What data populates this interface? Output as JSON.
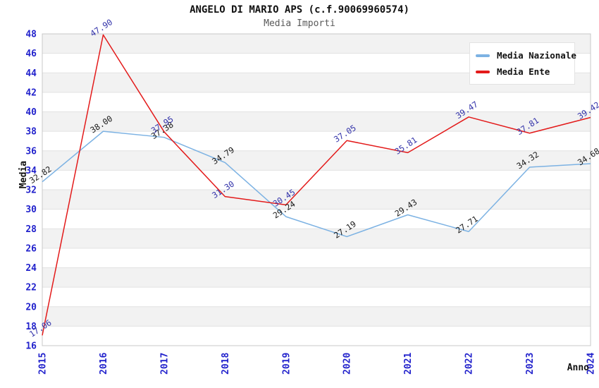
{
  "header": {
    "title": "ANGELO DI MARIO APS (c.f.90069960574)",
    "subtitle": "Media Importi"
  },
  "axes": {
    "y_label": "Media",
    "x_label": "Anno"
  },
  "legend": {
    "items": [
      {
        "label": "Media Nazionale",
        "color": "#7cb2e3"
      },
      {
        "label": "Media Ente",
        "color": "#e31a1a"
      }
    ]
  },
  "colors": {
    "tick_label": "#2222cc",
    "band_fill": "#f2f2f2",
    "grid_line": "#e2e2e2",
    "plot_border": "#c8c8c8",
    "nazionale_line": "#7cb2e3",
    "ente_line": "#e31a1a",
    "nazionale_point_label": "#1a1a1a",
    "ente_point_label": "#3333aa"
  },
  "chart_data": {
    "type": "line",
    "title": "ANGELO DI MARIO APS (c.f.90069960574)",
    "subtitle": "Media Importi",
    "xlabel": "Anno",
    "ylabel": "Media",
    "categories": [
      "2015",
      "2016",
      "2017",
      "2018",
      "2019",
      "2020",
      "2021",
      "2022",
      "2023",
      "2024"
    ],
    "series": [
      {
        "name": "Media Nazionale",
        "color": "#7cb2e3",
        "label_color": "#1a1a1a",
        "values": [
          32.82,
          38.0,
          37.38,
          34.79,
          29.24,
          27.19,
          29.43,
          27.71,
          34.32,
          34.68
        ]
      },
      {
        "name": "Media Ente",
        "color": "#e31a1a",
        "label_color": "#3333aa",
        "values": [
          17.06,
          47.9,
          37.95,
          31.3,
          30.45,
          37.05,
          35.81,
          39.47,
          37.81,
          39.42
        ]
      }
    ],
    "ylim": [
      16,
      48
    ],
    "ytick_step": 2,
    "grid": true,
    "banded_background": true,
    "legend_position": "top-right",
    "point_labels": "values shown rotated at each data point, 2 decimals"
  }
}
